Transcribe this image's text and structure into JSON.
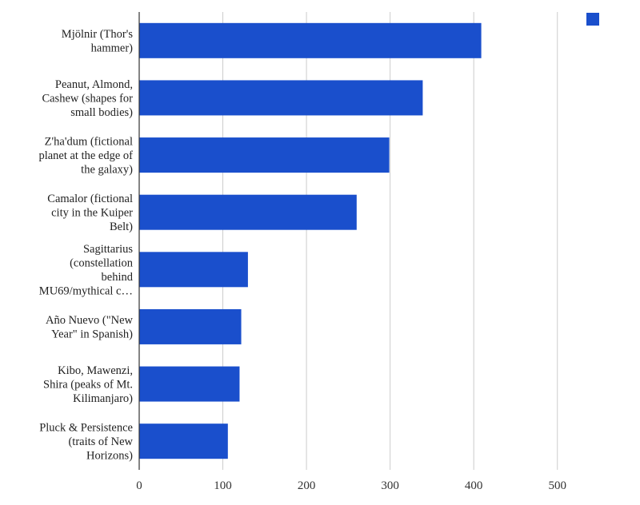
{
  "chart_data": {
    "type": "bar",
    "orientation": "horizontal",
    "categories": [
      [
        "Mjölnir (Thor's",
        "hammer)"
      ],
      [
        "Peanut, Almond,",
        "Cashew (shapes for",
        "small bodies)"
      ],
      [
        "Z'ha'dum (fictional",
        "planet at the edge of",
        "the galaxy)"
      ],
      [
        "Camalor (fictional",
        "city in the Kuiper",
        "Belt)"
      ],
      [
        "Sagittarius",
        "(constellation",
        "behind",
        "MU69/mythical c…"
      ],
      [
        "Año Nuevo (\"New",
        "Year\" in Spanish)"
      ],
      [
        "Kibo, Mawenzi,",
        "Shira (peaks of Mt.",
        "Kilimanjaro)"
      ],
      [
        "Pluck & Persistence",
        "(traits of New",
        "Horizons)"
      ]
    ],
    "series": [
      {
        "values": [
          409,
          339,
          299,
          260,
          130,
          122,
          120,
          106
        ]
      }
    ],
    "xlim": [
      0,
      550
    ],
    "x_ticks": [
      0,
      100,
      200,
      300,
      400,
      500
    ],
    "x_tick_labels": [
      "0",
      "100",
      "200",
      "300",
      "400",
      "500"
    ],
    "grid": true,
    "legend": {
      "position": "top-right",
      "entries": [
        ""
      ]
    },
    "bar_color": "#1a4fcc",
    "title": "",
    "xlabel": "",
    "ylabel": ""
  }
}
